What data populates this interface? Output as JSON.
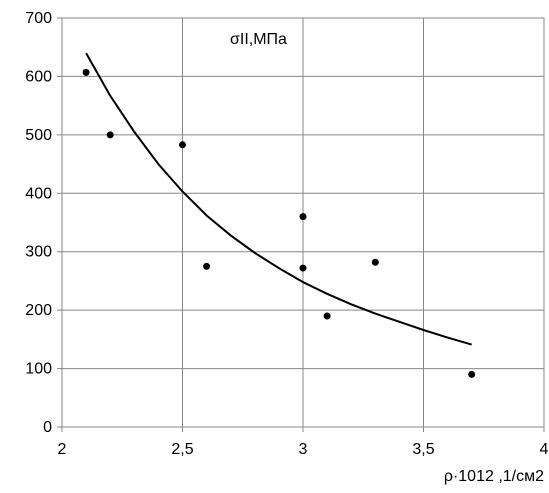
{
  "chart_data": {
    "type": "scatter",
    "title": "σII,МПа",
    "xlabel": "ρ·1012 ,1/см2",
    "ylabel": "",
    "xlim": [
      2,
      4
    ],
    "ylim": [
      0,
      700
    ],
    "x_ticks": [
      2,
      2.5,
      3,
      3.5,
      4
    ],
    "x_tick_labels": [
      "2",
      "2,5",
      "3",
      "3,5",
      "4"
    ],
    "y_ticks": [
      0,
      100,
      200,
      300,
      400,
      500,
      600,
      700
    ],
    "y_tick_labels": [
      "0",
      "100",
      "200",
      "300",
      "400",
      "500",
      "600",
      "700"
    ],
    "grid": true,
    "legend": "none",
    "series": [
      {
        "kind": "points",
        "color": "#000000",
        "x": [
          2.1,
          2.2,
          2.5,
          2.6,
          3.0,
          3.0,
          3.1,
          3.3,
          3.7
        ],
        "y": [
          607,
          500,
          483,
          275,
          360,
          272,
          190,
          282,
          90
        ]
      },
      {
        "kind": "trendline",
        "color": "#000000",
        "x": [
          2.1,
          2.2,
          2.3,
          2.4,
          2.5,
          2.6,
          2.7,
          2.8,
          2.9,
          3.0,
          3.1,
          3.2,
          3.3,
          3.4,
          3.5,
          3.6,
          3.7
        ],
        "y": [
          640,
          567,
          505,
          450,
          403,
          362,
          328,
          298,
          272,
          248,
          228,
          210,
          194,
          180,
          166,
          153,
          141
        ]
      }
    ]
  }
}
